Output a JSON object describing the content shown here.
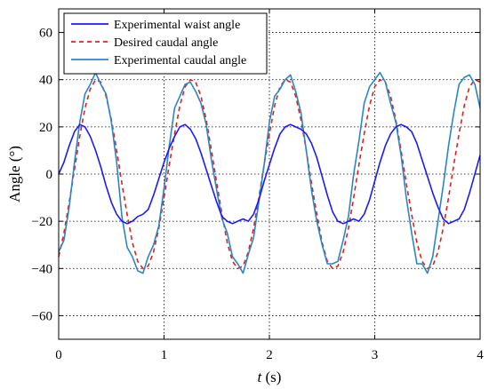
{
  "chart_data": {
    "type": "line",
    "title": "",
    "xlabel_var": "t",
    "xlabel_unit": " (s)",
    "ylabel": "Angle  (°)",
    "xlim": [
      0,
      4
    ],
    "ylim": [
      -70,
      70
    ],
    "xticks": [
      0,
      1,
      2,
      3,
      4
    ],
    "yticks": [
      -60,
      -40,
      -20,
      0,
      20,
      40,
      60
    ],
    "grid": true,
    "grid_style": "dotted",
    "legend_position": "top-left",
    "series": [
      {
        "name": "Experimental waist angle",
        "color": "#1a1aff",
        "style": "solid",
        "x": [
          0.0,
          0.05,
          0.1,
          0.15,
          0.2,
          0.25,
          0.3,
          0.35,
          0.4,
          0.45,
          0.5,
          0.55,
          0.6,
          0.65,
          0.7,
          0.75,
          0.8,
          0.85,
          0.9,
          0.95,
          1.0,
          1.05,
          1.1,
          1.15,
          1.2,
          1.25,
          1.3,
          1.35,
          1.4,
          1.45,
          1.5,
          1.55,
          1.6,
          1.65,
          1.7,
          1.75,
          1.8,
          1.85,
          1.9,
          1.95,
          2.0,
          2.05,
          2.1,
          2.15,
          2.2,
          2.25,
          2.3,
          2.35,
          2.4,
          2.45,
          2.5,
          2.55,
          2.6,
          2.65,
          2.7,
          2.75,
          2.8,
          2.85,
          2.9,
          2.95,
          3.0,
          3.05,
          3.1,
          3.15,
          3.2,
          3.25,
          3.3,
          3.35,
          3.4,
          3.45,
          3.5,
          3.55,
          3.6,
          3.65,
          3.7,
          3.75,
          3.8,
          3.85,
          3.9,
          3.95,
          4.0
        ],
        "y": [
          0,
          5,
          12,
          18,
          21,
          20,
          16,
          10,
          3,
          -5,
          -12,
          -17,
          -20,
          -21,
          -20,
          -18,
          -17,
          -15,
          -9,
          -2,
          5,
          11,
          16,
          20,
          21,
          19,
          15,
          9,
          2,
          -5,
          -12,
          -18,
          -20,
          -21,
          -20,
          -19,
          -20,
          -17,
          -11,
          -3,
          4,
          11,
          17,
          20,
          21,
          20,
          19,
          17,
          13,
          7,
          -1,
          -9,
          -16,
          -20,
          -21,
          -20,
          -19,
          -20,
          -17,
          -11,
          -3,
          5,
          12,
          17,
          20,
          21,
          20,
          18,
          13,
          6,
          -1,
          -8,
          -14,
          -19,
          -21,
          -20,
          -19,
          -15,
          -8,
          0,
          8
        ]
      },
      {
        "name": "Desired caudal angle",
        "color": "#e0201a",
        "style": "dashed",
        "x": [
          0.0,
          0.05,
          0.1,
          0.15,
          0.2,
          0.25,
          0.3,
          0.35,
          0.4,
          0.45,
          0.5,
          0.55,
          0.6,
          0.65,
          0.7,
          0.75,
          0.8,
          0.85,
          0.9,
          0.95,
          1.0,
          1.05,
          1.1,
          1.15,
          1.2,
          1.25,
          1.3,
          1.35,
          1.4,
          1.45,
          1.5,
          1.55,
          1.6,
          1.65,
          1.7,
          1.75,
          1.8,
          1.85,
          1.9,
          1.95,
          2.0,
          2.05,
          2.1,
          2.15,
          2.2,
          2.25,
          2.3,
          2.35,
          2.4,
          2.45,
          2.5,
          2.55,
          2.6,
          2.65,
          2.7,
          2.75,
          2.8,
          2.85,
          2.9,
          2.95,
          3.0,
          3.05,
          3.1,
          3.15,
          3.2,
          3.25,
          3.3,
          3.35,
          3.4,
          3.45,
          3.5,
          3.55,
          3.6,
          3.65,
          3.7,
          3.75,
          3.8,
          3.85,
          3.9,
          3.95,
          4.0
        ],
        "y": [
          -35,
          -25,
          -12,
          2,
          16,
          28,
          36,
          40,
          39,
          33,
          23,
          10,
          -4,
          -17,
          -29,
          -37,
          -40,
          -39,
          -33,
          -23,
          -10,
          4,
          17,
          29,
          37,
          40,
          39,
          33,
          23,
          10,
          -4,
          -17,
          -29,
          -37,
          -40,
          -39,
          -33,
          -23,
          -10,
          4,
          17,
          29,
          37,
          40,
          39,
          33,
          23,
          10,
          -4,
          -17,
          -29,
          -37,
          -40,
          -39,
          -33,
          -23,
          -10,
          4,
          17,
          29,
          37,
          40,
          39,
          33,
          23,
          10,
          -4,
          -17,
          -29,
          -37,
          -40,
          -39,
          -33,
          -23,
          -10,
          4,
          17,
          29,
          37,
          40,
          39
        ]
      },
      {
        "name": "Experimental caudal angle",
        "color": "#2a86c6",
        "style": "solid",
        "x": [
          0.0,
          0.05,
          0.1,
          0.15,
          0.2,
          0.25,
          0.3,
          0.35,
          0.4,
          0.45,
          0.5,
          0.55,
          0.6,
          0.65,
          0.7,
          0.75,
          0.8,
          0.85,
          0.9,
          0.95,
          1.0,
          1.05,
          1.1,
          1.15,
          1.2,
          1.25,
          1.3,
          1.35,
          1.4,
          1.45,
          1.5,
          1.55,
          1.6,
          1.65,
          1.7,
          1.75,
          1.8,
          1.85,
          1.9,
          1.95,
          2.0,
          2.05,
          2.1,
          2.15,
          2.2,
          2.25,
          2.3,
          2.35,
          2.4,
          2.45,
          2.5,
          2.55,
          2.6,
          2.65,
          2.7,
          2.75,
          2.8,
          2.85,
          2.9,
          2.95,
          3.0,
          3.05,
          3.1,
          3.15,
          3.2,
          3.25,
          3.3,
          3.35,
          3.4,
          3.45,
          3.5,
          3.55,
          3.6,
          3.65,
          3.7,
          3.75,
          3.8,
          3.85,
          3.9,
          3.95,
          4.0
        ],
        "y": [
          -33,
          -28,
          -14,
          5,
          22,
          34,
          38,
          43,
          38,
          34,
          22,
          5,
          -18,
          -31,
          -35,
          -41,
          -42,
          -35,
          -30,
          -22,
          -6,
          12,
          28,
          33,
          38,
          39,
          35,
          30,
          21,
          6,
          -7,
          -19,
          -25,
          -35,
          -38,
          -42,
          -34,
          -27,
          -12,
          4,
          22,
          33,
          36,
          40,
          42,
          35,
          26,
          10,
          -7,
          -20,
          -30,
          -38,
          -38,
          -37,
          -28,
          -18,
          0,
          14,
          30,
          37,
          40,
          43,
          39,
          30,
          22,
          8,
          -10,
          -25,
          -38,
          -38,
          -42,
          -35,
          -20,
          -5,
          12,
          26,
          38,
          41,
          42,
          38,
          28
        ]
      }
    ]
  }
}
